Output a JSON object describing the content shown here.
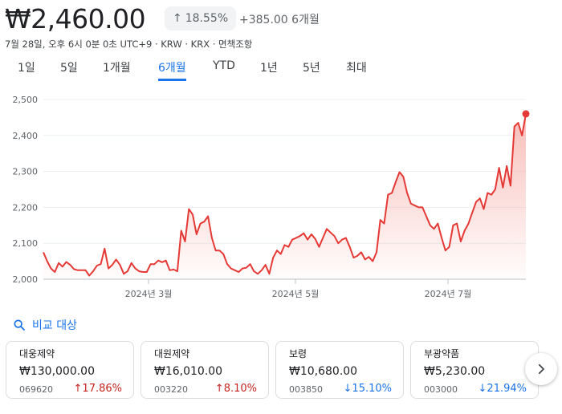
{
  "header": {
    "price": "₩2,460.00",
    "change_percent": "18.55%",
    "change_arrow": "↑",
    "change_abs": "+385.00 6개월",
    "meta": "7월 28일, 오후 6시 0분 0초 UTC+9 · KRW · KRX · 면책조항"
  },
  "tabs": [
    {
      "label": "1일"
    },
    {
      "label": "5일"
    },
    {
      "label": "1개월"
    },
    {
      "label": "6개월",
      "active": true
    },
    {
      "label": "YTD"
    },
    {
      "label": "1년"
    },
    {
      "label": "5년"
    },
    {
      "label": "최대"
    }
  ],
  "chart_data": {
    "type": "area",
    "y_ticks": [
      "2,500",
      "2,400",
      "2,300",
      "2,200",
      "2,100",
      "2,000"
    ],
    "ylim": [
      2000,
      2500
    ],
    "x_ticks": [
      {
        "label": "2024년 3월",
        "x": 0.24
      },
      {
        "label": "2024년 5월",
        "x": 0.57
      },
      {
        "label": "2024년 7월",
        "x": 0.89
      }
    ],
    "values": [
      2075,
      2050,
      2030,
      2020,
      2045,
      2035,
      2048,
      2040,
      2028,
      2025,
      2025,
      2025,
      2010,
      2022,
      2038,
      2042,
      2085,
      2030,
      2040,
      2055,
      2040,
      2015,
      2022,
      2045,
      2030,
      2022,
      2020,
      2020,
      2042,
      2042,
      2052,
      2047,
      2052,
      2025,
      2027,
      2022,
      2135,
      2105,
      2195,
      2180,
      2125,
      2155,
      2160,
      2175,
      2115,
      2080,
      2080,
      2070,
      2042,
      2030,
      2025,
      2020,
      2030,
      2032,
      2042,
      2022,
      2015,
      2025,
      2040,
      2015,
      2060,
      2080,
      2070,
      2095,
      2090,
      2110,
      2115,
      2120,
      2128,
      2110,
      2125,
      2112,
      2090,
      2115,
      2140,
      2130,
      2120,
      2100,
      2110,
      2115,
      2090,
      2060,
      2065,
      2075,
      2055,
      2062,
      2050,
      2075,
      2165,
      2155,
      2235,
      2240,
      2270,
      2298,
      2285,
      2240,
      2210,
      2205,
      2200,
      2200,
      2175,
      2150,
      2140,
      2155,
      2115,
      2080,
      2090,
      2150,
      2155,
      2105,
      2135,
      2155,
      2185,
      2215,
      2225,
      2195,
      2240,
      2235,
      2250,
      2310,
      2255,
      2315,
      2260,
      2425,
      2435,
      2400,
      2460
    ],
    "series_color": "#e53935",
    "fill_color": "#f28b82"
  },
  "compare": {
    "label": "비교 대상",
    "icon": "search-icon"
  },
  "cards": [
    {
      "name": "대웅제약",
      "price": "₩130,000.00",
      "code": "069620",
      "pct": "17.86%",
      "dir": "up"
    },
    {
      "name": "대원제약",
      "price": "₩16,010.00",
      "code": "003220",
      "pct": "8.10%",
      "dir": "up"
    },
    {
      "name": "보령",
      "price": "₩10,680.00",
      "code": "003850",
      "pct": "15.10%",
      "dir": "down"
    },
    {
      "name": "부광약품",
      "price": "₩5,230.00",
      "code": "003000",
      "pct": "21.94%",
      "dir": "down"
    }
  ],
  "next_icon": "chevron-right-icon"
}
